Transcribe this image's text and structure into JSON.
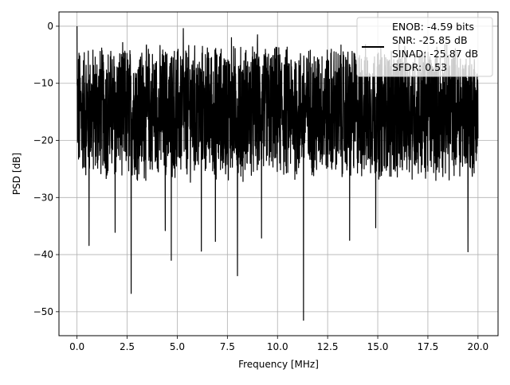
{
  "chart_data": {
    "type": "line",
    "title": "",
    "xlabel": "Frequency [MHz]",
    "ylabel": "PSD [dB]",
    "xlim": [
      -0.9,
      21.0
    ],
    "ylim": [
      -54.2,
      2.5
    ],
    "xticks": [
      0.0,
      2.5,
      5.0,
      7.5,
      10.0,
      12.5,
      15.0,
      17.5,
      20.0
    ],
    "xtick_labels": [
      "0.0",
      "2.5",
      "5.0",
      "7.5",
      "10.0",
      "12.5",
      "15.0",
      "17.5",
      "20.0"
    ],
    "yticks": [
      0,
      -10,
      -20,
      -30,
      -40,
      -50
    ],
    "ytick_labels": [
      "0",
      "−10",
      "−20",
      "−30",
      "−40",
      "−50"
    ],
    "grid": true,
    "legend": {
      "placement": "upper-right",
      "entries": [
        "ENOB: -4.59 bits",
        "SNR: -25.85 dB",
        "SINAD: -25.87 dB",
        "SFDR: 0.53"
      ]
    },
    "series": [
      {
        "color": "#000000",
        "x_range": [
          0.0,
          20.0
        ],
        "typical_range_db": [
          -25,
          -5
        ],
        "peaks": [
          {
            "x": 0.0,
            "y": 0.0
          },
          {
            "x": 5.3,
            "y": -0.4
          },
          {
            "x": 7.7,
            "y": -2.0
          },
          {
            "x": 9.0,
            "y": -1.5
          }
        ],
        "dips": [
          {
            "x": 0.6,
            "y": -38.4
          },
          {
            "x": 1.9,
            "y": -36.1
          },
          {
            "x": 2.7,
            "y": -46.8
          },
          {
            "x": 4.4,
            "y": -35.8
          },
          {
            "x": 4.7,
            "y": -41.0
          },
          {
            "x": 6.2,
            "y": -39.4
          },
          {
            "x": 6.9,
            "y": -37.7
          },
          {
            "x": 7.7,
            "y": -37.8
          },
          {
            "x": 8.0,
            "y": -43.7
          },
          {
            "x": 9.2,
            "y": -37.1
          },
          {
            "x": 11.3,
            "y": -51.5
          },
          {
            "x": 13.6,
            "y": -37.5
          },
          {
            "x": 14.9,
            "y": -35.3
          },
          {
            "x": 19.5,
            "y": -39.5
          }
        ]
      }
    ]
  }
}
